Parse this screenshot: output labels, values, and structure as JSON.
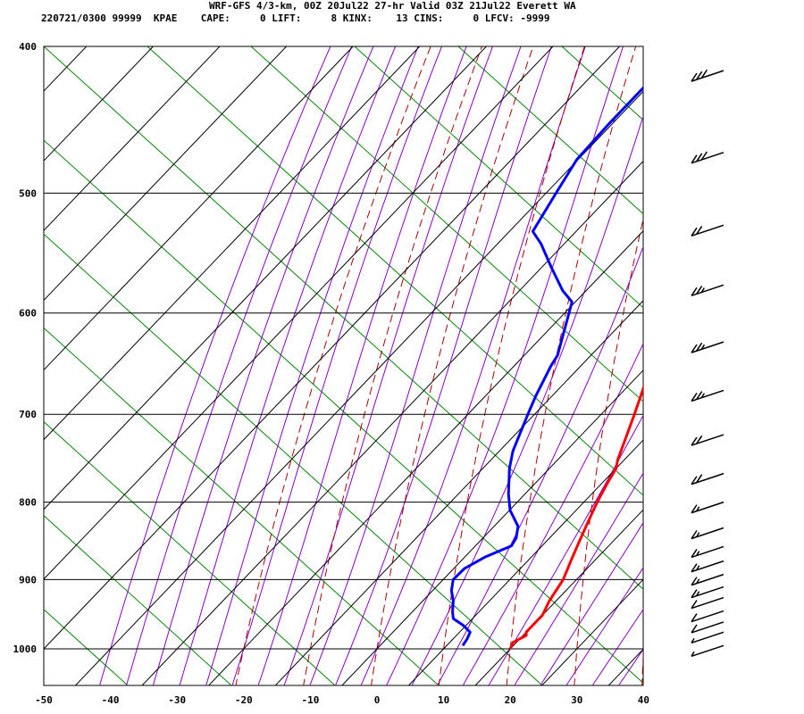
{
  "header": {
    "line1": "WRF-GFS 4/3-km, 00Z 20Jul22 27-hr Valid 03Z 21Jul22 Everett WA",
    "line2": "220721/0300 99999  KPAE    CAPE:     0 LIFT:     8 KINX:    13 CINS:     0 LFCV: -9999"
  },
  "chart_data": {
    "type": "line",
    "title": "WRF-GFS 4/3-km, 00Z 20Jul22 27-hr Valid 03Z 21Jul22 Everett WA",
    "xlabel": "",
    "ylabel": "",
    "x_ticks": [
      "-50",
      "-40",
      "-30",
      "-20",
      "-10",
      "0",
      "10",
      "20",
      "30",
      "40"
    ],
    "y_ticks": [
      "400",
      "500",
      "600",
      "700",
      "800",
      "900",
      "1000"
    ],
    "xlim": [
      -50,
      40
    ],
    "ylim": [
      1040,
      400
    ],
    "y_scale": "log",
    "skew": "skew-T",
    "grid": true,
    "colors": {
      "temperature": "#ff0000",
      "dewpoint": "#0000ff",
      "dry_adiabat": "#aa0000",
      "moist_adiabat": "#8800cc",
      "mixing_ratio": "#008800"
    },
    "series": [
      {
        "key": "temperature",
        "points": [
          [
            1000,
            20.0
          ],
          [
            990,
            19.5
          ],
          [
            980,
            20.5
          ],
          [
            975,
            20.0
          ],
          [
            960,
            20.0
          ],
          [
            950,
            20.0
          ],
          [
            930,
            19.0
          ],
          [
            900,
            18.0
          ],
          [
            875,
            16.5
          ],
          [
            850,
            15.0
          ],
          [
            825,
            13.5
          ],
          [
            800,
            12.0
          ],
          [
            775,
            10.7
          ],
          [
            760,
            10.0
          ],
          [
            750,
            9.0
          ],
          [
            700,
            5.0
          ],
          [
            650,
            0.5
          ],
          [
            600,
            -3.8
          ],
          [
            550,
            -8.5
          ],
          [
            525,
            -11.0
          ],
          [
            500,
            -14.0
          ],
          [
            475,
            -17.0
          ],
          [
            450,
            -20.5
          ],
          [
            425,
            -24.0
          ],
          [
            415,
            -25.8
          ]
        ]
      },
      {
        "key": "dewpoint",
        "points": [
          [
            995,
            12.4
          ],
          [
            985,
            12.1
          ],
          [
            975,
            11.6
          ],
          [
            965,
            9.6
          ],
          [
            955,
            7.1
          ],
          [
            945,
            6.0
          ],
          [
            930,
            4.6
          ],
          [
            915,
            2.8
          ],
          [
            900,
            1.5
          ],
          [
            885,
            1.6
          ],
          [
            870,
            3.0
          ],
          [
            855,
            5.4
          ],
          [
            845,
            5.0
          ],
          [
            830,
            3.6
          ],
          [
            810,
            0.1
          ],
          [
            790,
            -2.5
          ],
          [
            760,
            -6.0
          ],
          [
            740,
            -8.0
          ],
          [
            700,
            -11.0
          ],
          [
            680,
            -12.5
          ],
          [
            650,
            -14.5
          ],
          [
            640,
            -15.0
          ],
          [
            590,
            -20.5
          ],
          [
            580,
            -23.5
          ],
          [
            560,
            -28.5
          ],
          [
            540,
            -33.5
          ],
          [
            530,
            -36.5
          ],
          [
            500,
            -38.5
          ],
          [
            475,
            -40.2
          ],
          [
            450,
            -40.5
          ],
          [
            415,
            -40.5
          ]
        ]
      }
    ],
    "wind_barbs": [
      {
        "p": 415,
        "speed_kt": 30
      },
      {
        "p": 470,
        "speed_kt": 30
      },
      {
        "p": 525,
        "speed_kt": 20
      },
      {
        "p": 575,
        "speed_kt": 25
      },
      {
        "p": 627,
        "speed_kt": 25
      },
      {
        "p": 675,
        "speed_kt": 25
      },
      {
        "p": 722,
        "speed_kt": 20
      },
      {
        "p": 766,
        "speed_kt": 20
      },
      {
        "p": 800,
        "speed_kt": 15
      },
      {
        "p": 832,
        "speed_kt": 15
      },
      {
        "p": 856,
        "speed_kt": 15
      },
      {
        "p": 875,
        "speed_kt": 15
      },
      {
        "p": 893,
        "speed_kt": 15
      },
      {
        "p": 910,
        "speed_kt": 15
      },
      {
        "p": 925,
        "speed_kt": 10
      },
      {
        "p": 944,
        "speed_kt": 10
      },
      {
        "p": 960,
        "speed_kt": 10
      },
      {
        "p": 975,
        "speed_kt": 5
      },
      {
        "p": 995,
        "speed_kt": 5
      }
    ]
  }
}
